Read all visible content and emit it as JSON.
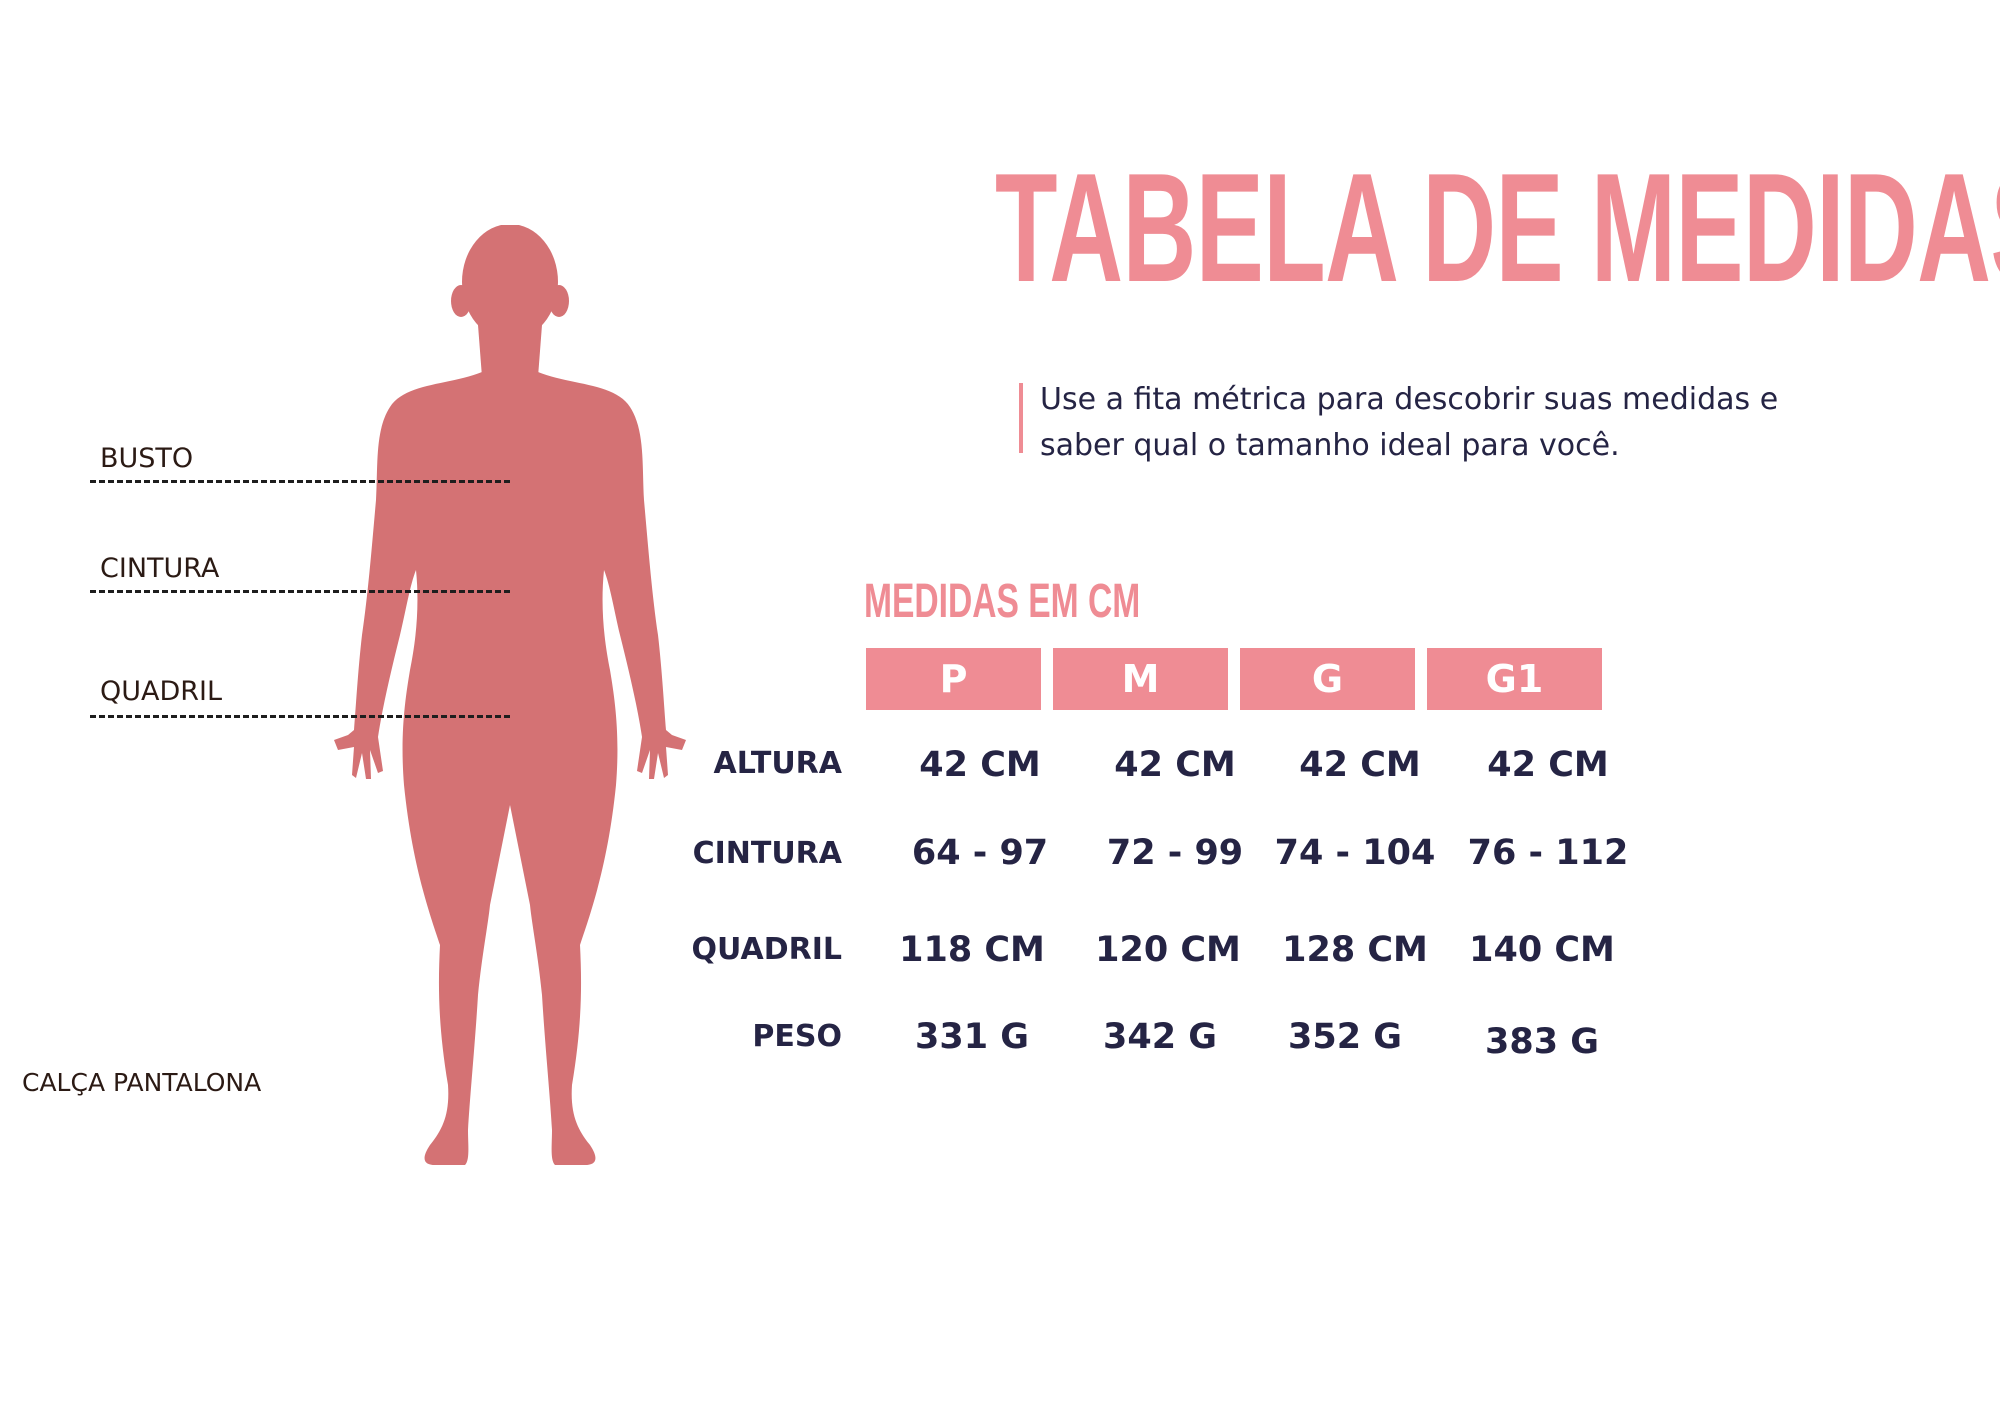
{
  "title": "TABELA DE MEDIDAS",
  "description": {
    "line1": "Use a fita métrica para descobrir suas medidas e",
    "line2": "saber qual o tamanho ideal para você."
  },
  "subtitle": "MEDIDAS EM CM",
  "sizes": [
    "P",
    "M",
    "G",
    "G1"
  ],
  "rows": [
    {
      "label": "ALTURA",
      "values": [
        "42 CM",
        "42 CM",
        "42 CM",
        "42 CM"
      ]
    },
    {
      "label": "CINTURA",
      "values": [
        "64 - 97",
        "72 - 99",
        "74 - 104",
        "76 - 112"
      ]
    },
    {
      "label": "QUADRIL",
      "values": [
        "118 CM",
        "120 CM",
        "128 CM",
        "140 CM"
      ]
    },
    {
      "label": "PESO",
      "values": [
        "331 G",
        "342 G",
        "352 G",
        "383 G"
      ]
    }
  ],
  "body_labels": {
    "bust": "BUSTO",
    "waist": "CINTURA",
    "hip": "QUADRIL"
  },
  "product_name": "CALÇA PANTALONA",
  "colors": {
    "accent_pink": "#ef8c94",
    "figure": "#d47274",
    "text_navy": "#252444"
  }
}
